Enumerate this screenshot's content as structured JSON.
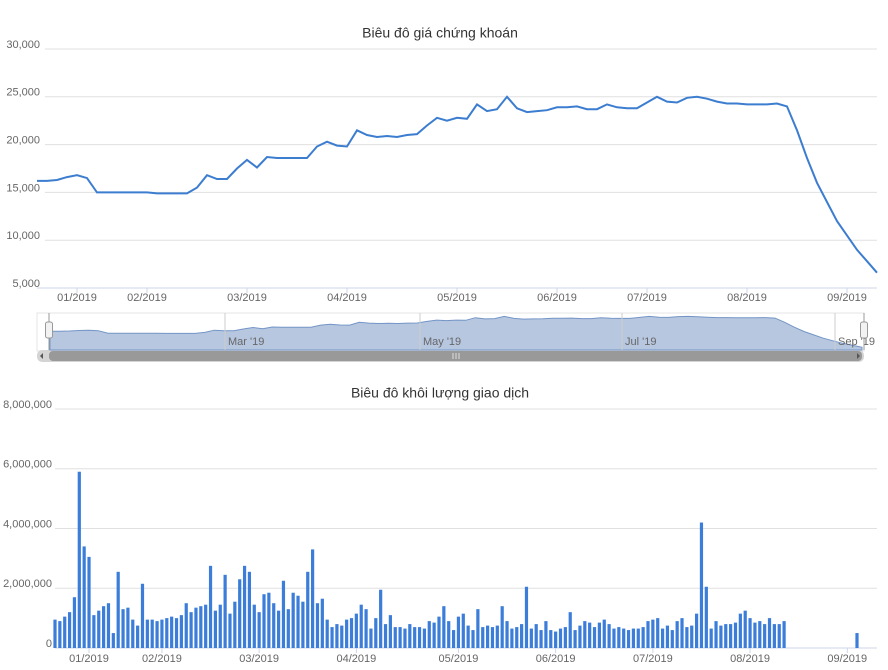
{
  "chart_data": [
    {
      "type": "line",
      "title": "Biêu đô giá chứng khoán",
      "color": "#3c7dd0",
      "grid": true,
      "ylim": [
        5000,
        30000
      ],
      "yticks": [
        {
          "value": 5000,
          "label": "5,000"
        },
        {
          "value": 10000,
          "label": "10,000"
        },
        {
          "value": 15000,
          "label": "15,000"
        },
        {
          "value": 20000,
          "label": "20,000"
        },
        {
          "value": 25000,
          "label": "25,000"
        },
        {
          "value": 30000,
          "label": "30,000"
        }
      ],
      "categories": [
        null,
        null,
        null,
        null,
        "01/2019",
        null,
        null,
        null,
        null,
        null,
        null,
        "02/2019",
        null,
        null,
        null,
        null,
        null,
        null,
        null,
        null,
        null,
        "03/2019",
        null,
        null,
        null,
        null,
        null,
        null,
        null,
        null,
        null,
        "04/2019",
        null,
        null,
        null,
        null,
        null,
        null,
        null,
        null,
        null,
        null,
        "05/2019",
        null,
        null,
        null,
        null,
        null,
        null,
        null,
        null,
        null,
        "06/2019",
        null,
        null,
        null,
        null,
        null,
        null,
        null,
        null,
        "07/2019",
        null,
        null,
        null,
        null,
        null,
        null,
        null,
        null,
        null,
        "08/2019",
        null,
        null,
        null,
        null,
        null,
        null,
        null,
        null,
        null,
        "09/2019",
        null,
        null,
        null
      ],
      "values": [
        16200,
        16200,
        16300,
        16600,
        16800,
        16500,
        15000,
        15000,
        15000,
        15000,
        15000,
        15000,
        14900,
        14900,
        14900,
        14900,
        15500,
        16800,
        16400,
        16400,
        17500,
        18400,
        17600,
        18700,
        18600,
        18600,
        18600,
        18600,
        19800,
        20300,
        19900,
        19800,
        21500,
        21000,
        20800,
        20900,
        20800,
        21000,
        21100,
        22000,
        22800,
        22500,
        22800,
        22700,
        24200,
        23500,
        23700,
        25000,
        23800,
        23400,
        23500,
        23600,
        23900,
        23900,
        24000,
        23700,
        23700,
        24200,
        23900,
        23800,
        23800,
        24400,
        25000,
        24500,
        24400,
        24900,
        25000,
        24800,
        24500,
        24300,
        24300,
        24200,
        24200,
        24200,
        24300,
        24000,
        21500,
        18600,
        16000,
        14000,
        12000,
        10500,
        9000,
        7800,
        6600
      ],
      "navigator_labels": [
        "Mar '19",
        "May '19",
        "Jul '19",
        "Sep '19"
      ]
    },
    {
      "type": "bar",
      "title": "Biêu đô khôi lượng giao dịch",
      "color": "#3b7dd8",
      "grid": true,
      "ylim": [
        0,
        8000000
      ],
      "yticks": [
        0,
        {
          "value": 2000000,
          "label": "2,000,000"
        },
        {
          "value": 4000000,
          "label": "4,000,000"
        },
        {
          "value": 6000000,
          "label": "6,000,000"
        },
        {
          "value": 8000000,
          "label": "8,000,000"
        }
      ],
      "categories": [
        null,
        null,
        null,
        null,
        null,
        null,
        null,
        "01/2019",
        null,
        null,
        null,
        null,
        null,
        null,
        null,
        null,
        null,
        null,
        null,
        null,
        null,
        null,
        "02/2019",
        null,
        null,
        null,
        null,
        null,
        null,
        null,
        null,
        null,
        null,
        null,
        null,
        null,
        null,
        null,
        null,
        null,
        null,
        null,
        "03/2019",
        null,
        null,
        null,
        null,
        null,
        null,
        null,
        null,
        null,
        null,
        null,
        null,
        null,
        null,
        null,
        null,
        null,
        null,
        null,
        "04/2019",
        null,
        null,
        null,
        null,
        null,
        null,
        null,
        null,
        null,
        null,
        null,
        null,
        null,
        null,
        null,
        null,
        null,
        null,
        null,
        null,
        "05/2019",
        null,
        null,
        null,
        null,
        null,
        null,
        null,
        null,
        null,
        null,
        null,
        null,
        null,
        null,
        null,
        null,
        null,
        null,
        null,
        "06/2019",
        null,
        null,
        null,
        null,
        null,
        null,
        null,
        null,
        null,
        null,
        null,
        null,
        null,
        null,
        null,
        null,
        null,
        null,
        null,
        "07/2019",
        null,
        null,
        null,
        null,
        null,
        null,
        null,
        null,
        null,
        null,
        null,
        null,
        null,
        null,
        null,
        null,
        null,
        null,
        null,
        "08/2019",
        null,
        null,
        null,
        null,
        null,
        null,
        null,
        null,
        null,
        null,
        null,
        null,
        null,
        null,
        null,
        null,
        null,
        null,
        null,
        "09/2019",
        null,
        null
      ],
      "values": [
        950000,
        900000,
        1050000,
        1200000,
        1700000,
        5900000,
        3400000,
        3050000,
        1100000,
        1250000,
        1400000,
        1500000,
        500000,
        2550000,
        1300000,
        1350000,
        950000,
        750000,
        2150000,
        950000,
        950000,
        900000,
        950000,
        1000000,
        1050000,
        1000000,
        1100000,
        1500000,
        1200000,
        1350000,
        1400000,
        1450000,
        2750000,
        1250000,
        1450000,
        2450000,
        1150000,
        1550000,
        2300000,
        2750000,
        2550000,
        1450000,
        1200000,
        1800000,
        1850000,
        1500000,
        1250000,
        2250000,
        1300000,
        1850000,
        1750000,
        1550000,
        2550000,
        3300000,
        1500000,
        1650000,
        950000,
        700000,
        800000,
        750000,
        950000,
        1000000,
        1150000,
        1450000,
        1300000,
        650000,
        1000000,
        1950000,
        800000,
        1100000,
        700000,
        700000,
        650000,
        800000,
        700000,
        700000,
        650000,
        900000,
        850000,
        1050000,
        1400000,
        900000,
        600000,
        1050000,
        1150000,
        750000,
        600000,
        1300000,
        700000,
        750000,
        700000,
        750000,
        1400000,
        900000,
        650000,
        700000,
        800000,
        2050000,
        650000,
        800000,
        600000,
        900000,
        600000,
        550000,
        650000,
        700000,
        1200000,
        600000,
        750000,
        900000,
        850000,
        700000,
        850000,
        950000,
        800000,
        650000,
        700000,
        650000,
        600000,
        650000,
        650000,
        700000,
        900000,
        950000,
        1000000,
        650000,
        750000,
        600000,
        900000,
        1000000,
        700000,
        750000,
        1150000,
        4200000,
        2050000,
        650000,
        900000,
        750000,
        800000,
        800000,
        850000,
        1150000,
        1250000,
        1000000,
        850000,
        900000,
        800000,
        1000000,
        800000,
        800000,
        900000,
        null,
        null,
        null,
        null,
        null,
        null,
        null,
        null,
        null,
        null,
        null,
        null,
        null,
        null,
        500000
      ]
    }
  ]
}
